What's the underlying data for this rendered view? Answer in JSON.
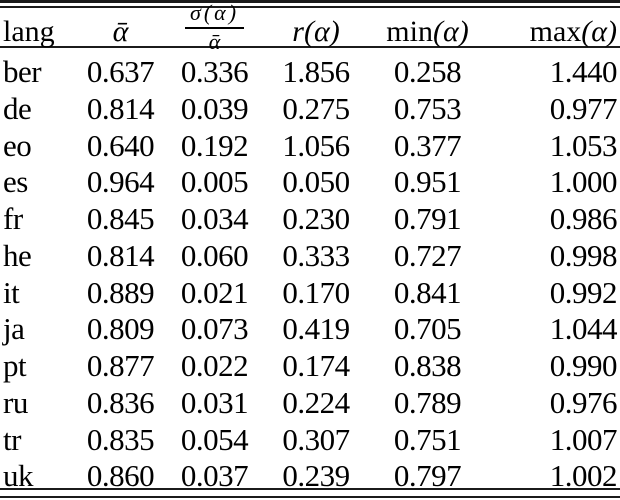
{
  "table": {
    "description": "per-language alpha statistics table",
    "columns": [
      {
        "label": "lang"
      },
      {
        "label": "ᾱ"
      },
      {
        "numerator": "σ(α)",
        "denominator": "ᾱ"
      },
      {
        "label": "r(α)"
      },
      {
        "prefix": "min",
        "arg": "(α)"
      },
      {
        "prefix": "max",
        "arg": "(α)"
      }
    ],
    "rows": [
      {
        "lang": "ber",
        "values": [
          "0.637",
          "0.336",
          "1.856",
          "0.258",
          "1.440"
        ]
      },
      {
        "lang": "de",
        "values": [
          "0.814",
          "0.039",
          "0.275",
          "0.753",
          "0.977"
        ]
      },
      {
        "lang": "eo",
        "values": [
          "0.640",
          "0.192",
          "1.056",
          "0.377",
          "1.053"
        ]
      },
      {
        "lang": "es",
        "values": [
          "0.964",
          "0.005",
          "0.050",
          "0.951",
          "1.000"
        ]
      },
      {
        "lang": "fr",
        "values": [
          "0.845",
          "0.034",
          "0.230",
          "0.791",
          "0.986"
        ]
      },
      {
        "lang": "he",
        "values": [
          "0.814",
          "0.060",
          "0.333",
          "0.727",
          "0.998"
        ]
      },
      {
        "lang": "it",
        "values": [
          "0.889",
          "0.021",
          "0.170",
          "0.841",
          "0.992"
        ]
      },
      {
        "lang": "ja",
        "values": [
          "0.809",
          "0.073",
          "0.419",
          "0.705",
          "1.044"
        ]
      },
      {
        "lang": "pt",
        "values": [
          "0.877",
          "0.022",
          "0.174",
          "0.838",
          "0.990"
        ]
      },
      {
        "lang": "ru",
        "values": [
          "0.836",
          "0.031",
          "0.224",
          "0.789",
          "0.976"
        ]
      },
      {
        "lang": "tr",
        "values": [
          "0.835",
          "0.054",
          "0.307",
          "0.751",
          "1.007"
        ]
      },
      {
        "lang": "uk",
        "values": [
          "0.860",
          "0.037",
          "0.239",
          "0.797",
          "1.002"
        ]
      }
    ],
    "colors": {
      "text": "#000000",
      "rule": "#1b1b1b"
    }
  }
}
